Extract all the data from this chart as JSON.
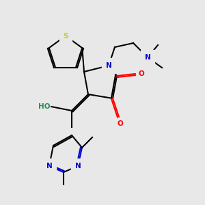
{
  "background_color": "#e8e8e8",
  "figsize": [
    3.0,
    3.0
  ],
  "dpi": 100,
  "colors": {
    "C": "#000000",
    "N": "#0000cc",
    "O": "#ff0000",
    "S": "#cccc00",
    "HO": "#2e8b57"
  },
  "lw": 1.5,
  "font_size": 7.5
}
